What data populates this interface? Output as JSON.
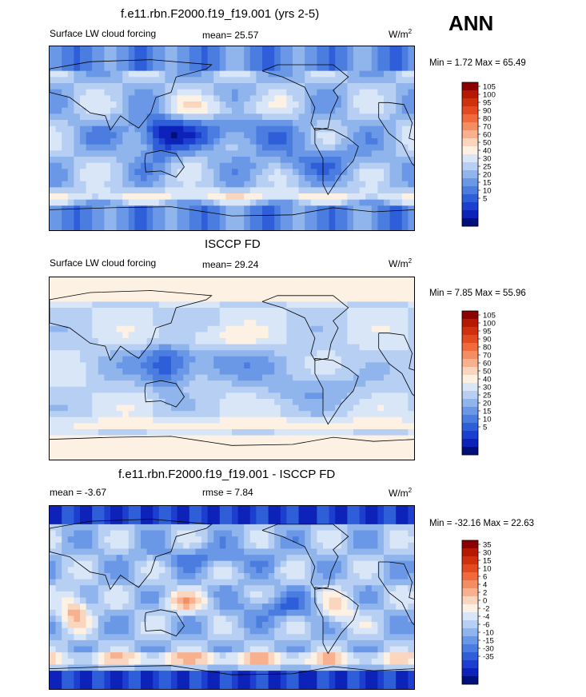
{
  "header": {
    "season": "ANN"
  },
  "panels": [
    {
      "title": "f.e11.rbn.F2000.f19_f19.001 (yrs 2-5)",
      "left_label": "Surface LW cloud forcing",
      "center_label": "mean=  25.57",
      "units_base": "W/m",
      "units_exp": "2",
      "minmax": "Min =   1.72 Max =  65.49"
    },
    {
      "title": "ISCCP FD",
      "left_label": "Surface LW cloud forcing",
      "center_label": "mean=  29.24",
      "units_base": "W/m",
      "units_exp": "2",
      "minmax": "Min =   7.85 Max =  55.96"
    },
    {
      "title": "f.e11.rbn.F2000.f19_f19.001 - ISCCP FD",
      "left_label": "mean =  -3.67",
      "center_label": "rmse =   7.84",
      "units_base": "W/m",
      "units_exp": "2",
      "minmax": "Min = -32.16 Max =  22.63"
    }
  ],
  "chart_data": [
    {
      "type": "heatmap",
      "title": "f.e11.rbn.F2000.f19_f19.001 (yrs 2-5)",
      "subtitle": "Surface LW cloud forcing",
      "mean": 25.57,
      "min": 1.72,
      "max": 65.49,
      "units": "W/m2",
      "colorbar_labels": [
        "105",
        "100",
        "95",
        "90",
        "80",
        "70",
        "60",
        "50",
        "40",
        "30",
        "25",
        "20",
        "15",
        "10",
        "5"
      ],
      "colorbar_colors": [
        "#8b0000",
        "#b51a00",
        "#d0300e",
        "#e34a1f",
        "#f06a3c",
        "#f58d63",
        "#f8b08e",
        "#fbd6bf",
        "#fdf1e4",
        "#d8e6f8",
        "#b7cff2",
        "#90b4ec",
        "#6b98e6",
        "#4a7ddf",
        "#2f5fd8",
        "#1c3fcf",
        "#0d22b8",
        "#00107a"
      ]
    },
    {
      "type": "heatmap",
      "title": "ISCCP FD",
      "subtitle": "Surface LW cloud forcing",
      "mean": 29.24,
      "min": 7.85,
      "max": 55.96,
      "units": "W/m2",
      "colorbar_labels": [
        "105",
        "100",
        "95",
        "90",
        "80",
        "70",
        "60",
        "50",
        "40",
        "30",
        "25",
        "20",
        "15",
        "10",
        "5"
      ],
      "colorbar_colors": [
        "#8b0000",
        "#b51a00",
        "#d0300e",
        "#e34a1f",
        "#f06a3c",
        "#f58d63",
        "#f8b08e",
        "#fbd6bf",
        "#fdf1e4",
        "#d8e6f8",
        "#b7cff2",
        "#90b4ec",
        "#6b98e6",
        "#4a7ddf",
        "#2f5fd8",
        "#1c3fcf",
        "#0d22b8",
        "#00107a"
      ]
    },
    {
      "type": "heatmap",
      "title": "f.e11.rbn.F2000.f19_f19.001 - ISCCP FD",
      "mean": -3.67,
      "rmse": 7.84,
      "min": -32.16,
      "max": 22.63,
      "units": "W/m2",
      "colorbar_labels": [
        "35",
        "30",
        "15",
        "10",
        "6",
        "4",
        "2",
        "0",
        "-2",
        "-4",
        "-6",
        "-10",
        "-15",
        "-30",
        "-35"
      ],
      "colorbar_colors": [
        "#8b0000",
        "#b51a00",
        "#d0300e",
        "#e34a1f",
        "#f06a3c",
        "#f58d63",
        "#f8b08e",
        "#fbd6bf",
        "#fdf1e4",
        "#d8e6f8",
        "#b7cff2",
        "#90b4ec",
        "#6b98e6",
        "#4a7ddf",
        "#2f5fd8",
        "#1c3fcf",
        "#0d22b8",
        "#00107a"
      ]
    }
  ]
}
